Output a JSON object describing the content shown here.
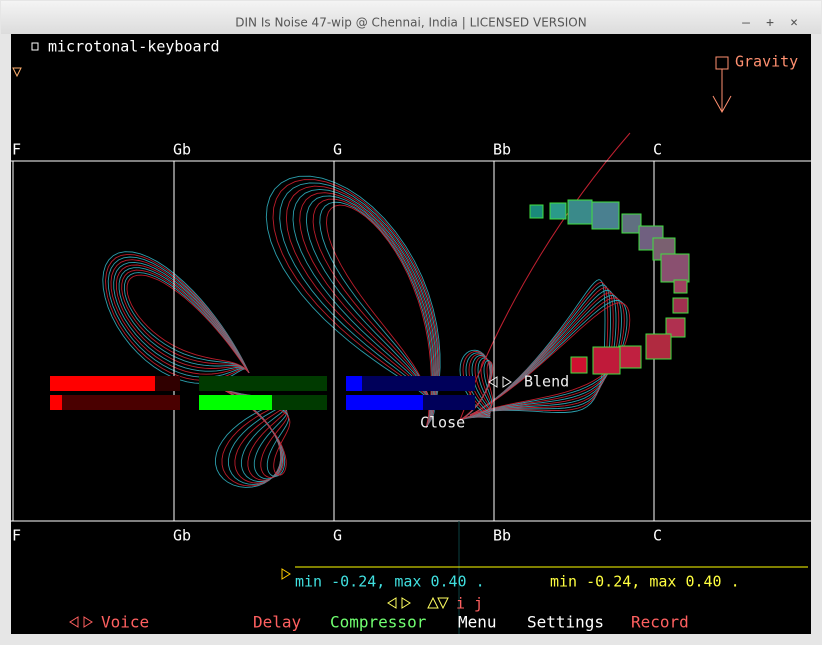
{
  "window": {
    "title": "DIN Is Noise 47-wip @ Chennai, India | LICENSED VERSION",
    "controls": [
      "–",
      "+",
      "×"
    ]
  },
  "app": {
    "mode_label": "microtonal-keyboard",
    "gravity_label": "Gravity",
    "top_notes": [
      "F",
      "Gb",
      "G",
      "Bb",
      "C"
    ],
    "bottom_notes": [
      "F",
      "Gb",
      "G",
      "Bb",
      "C"
    ],
    "blend_label": "Blend",
    "close_label": "Close",
    "range_left": "min -0.24, max 0.40 .",
    "range_right": "min -0.24, max 0.40 .",
    "ij_label": "i j",
    "menu": [
      "Voice",
      "Delay",
      "Compressor",
      "Menu",
      "Settings",
      "Record"
    ]
  }
}
